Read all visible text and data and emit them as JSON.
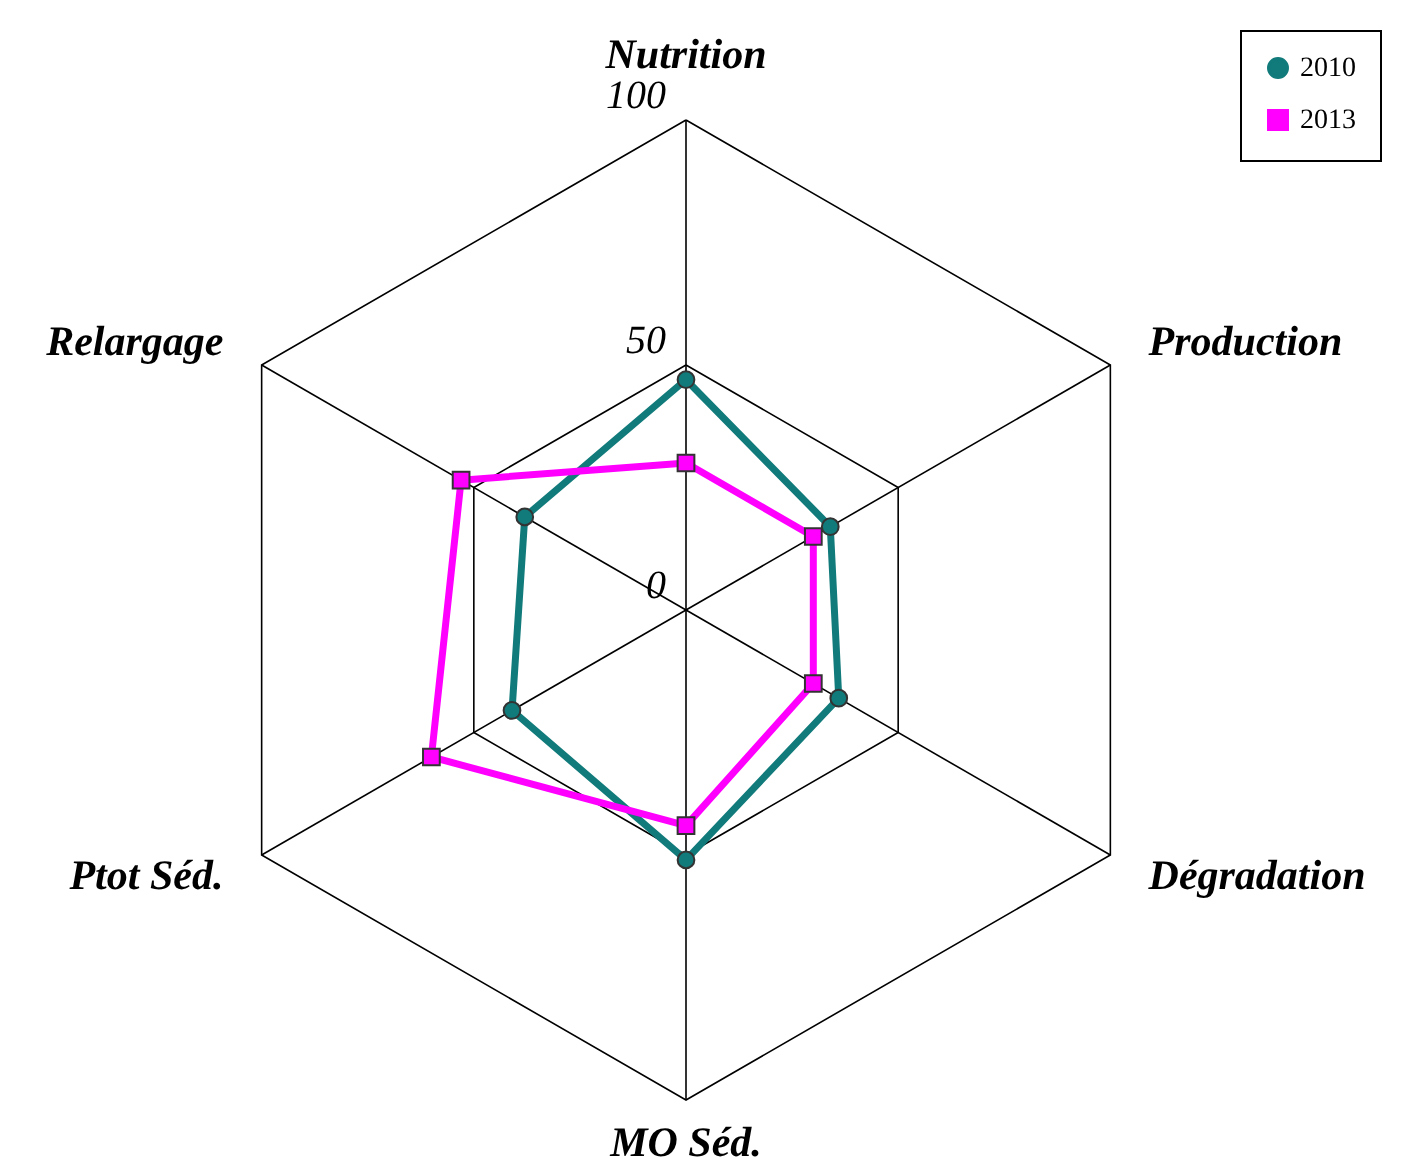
{
  "chart_data": {
    "type": "radar",
    "categories": [
      "Nutrition",
      "Production",
      "Dégradation",
      "MO Séd.",
      "Ptot Séd.",
      "Relargage"
    ],
    "series": [
      {
        "name": "2010",
        "color": "#117a7a",
        "marker": "circle",
        "values": [
          47,
          34,
          36,
          51,
          41,
          38
        ]
      },
      {
        "name": "2013",
        "color": "#ff00ff",
        "marker": "square",
        "values": [
          30,
          30,
          30,
          44,
          60,
          53
        ]
      }
    ],
    "ylim": [
      0,
      100
    ],
    "yticks": [
      0,
      50,
      100
    ],
    "grid": true,
    "legend": "top right"
  }
}
